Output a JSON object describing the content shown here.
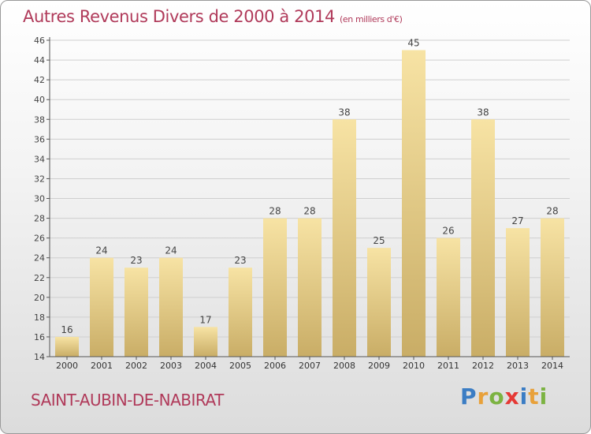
{
  "title": "Autres Revenus Divers de 2000 à 2014",
  "unit": "(en milliers d'€)",
  "commune": "SAINT-AUBIN-DE-NABIRAT",
  "brand": {
    "letters": [
      "P",
      "r",
      "o",
      "x",
      "i",
      "t",
      "i"
    ],
    "colors": [
      "#3b7dc4",
      "#e8a13a",
      "#7cb342",
      "#e53935",
      "#3b7dc4",
      "#e8a13a",
      "#7cb342"
    ]
  },
  "colors": {
    "title": "#b03a5a",
    "bar_light": "#f7e3a4",
    "bar_dark": "#c9ad66",
    "grid": "#cfcfcf"
  },
  "chart_data": {
    "type": "bar",
    "title": "Autres Revenus Divers de 2000 à 2014",
    "subtitle": "(en milliers d'€)",
    "categories": [
      "2000",
      "2001",
      "2002",
      "2003",
      "2004",
      "2005",
      "2006",
      "2007",
      "2008",
      "2009",
      "2010",
      "2011",
      "2012",
      "2013",
      "2014"
    ],
    "values": [
      16,
      24,
      23,
      24,
      17,
      23,
      28,
      28,
      38,
      25,
      45,
      26,
      38,
      27,
      28
    ],
    "ylim": [
      14,
      46
    ],
    "yticks": [
      14,
      16,
      18,
      20,
      22,
      24,
      26,
      28,
      30,
      32,
      34,
      36,
      38,
      40,
      42,
      44,
      46
    ],
    "grid": true,
    "legend": "none"
  }
}
